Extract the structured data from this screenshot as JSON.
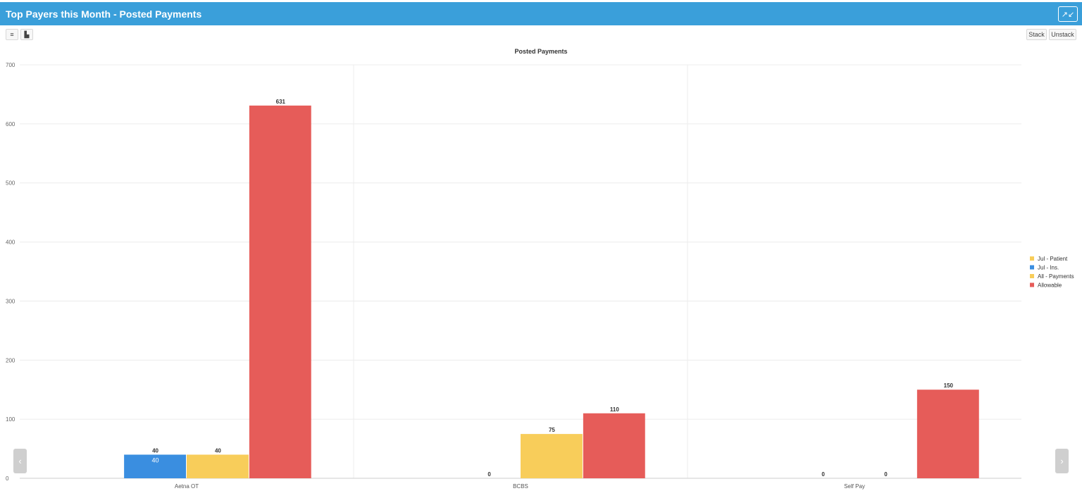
{
  "panel": {
    "title": "Top Payers this Month - Posted Payments",
    "collapse_icon": "compress-arrows-icon"
  },
  "toolbar": {
    "list_icon": "list-icon",
    "list_glyph": "≡",
    "bar_icon": "bar-chart-icon",
    "bar_glyph": "▙",
    "stack_label": "Stack",
    "unstack_label": "Unstack"
  },
  "nav": {
    "prev_glyph": "‹",
    "next_glyph": "›"
  },
  "chart_data": {
    "type": "bar",
    "title": "Posted Payments",
    "xlabel": "",
    "ylabel": "",
    "ylim": [
      0,
      700
    ],
    "yticks": [
      0,
      100,
      200,
      300,
      400,
      500,
      600,
      700
    ],
    "grid": true,
    "legend_position": "right",
    "categories": [
      "Aetna OT",
      "BCBS",
      "Self Pay"
    ],
    "series": [
      {
        "name": "Jul - Patient",
        "color": "#f8cd5a",
        "values": [
          0,
          0,
          0
        ],
        "labels": [
          "",
          "",
          ""
        ]
      },
      {
        "name": "Jul - Ins.",
        "color": "#3a8ee0",
        "values": [
          40,
          0,
          0
        ],
        "labels": [
          "40",
          "0",
          "0"
        ],
        "inner_label": "40"
      },
      {
        "name": "All - Payments",
        "color": "#f8cd5a",
        "values": [
          40,
          75,
          0
        ],
        "labels": [
          "40",
          "75",
          "0"
        ]
      },
      {
        "name": "Allowable",
        "color": "#e65c59",
        "values": [
          631,
          110,
          150
        ],
        "labels": [
          "631",
          "110",
          "150"
        ]
      }
    ]
  }
}
